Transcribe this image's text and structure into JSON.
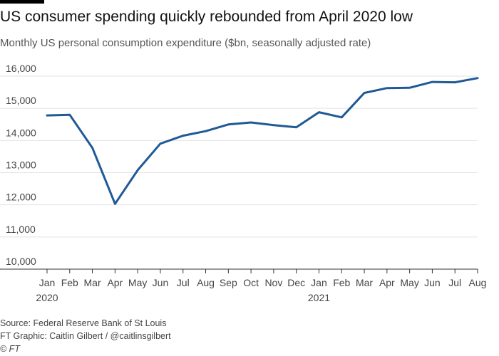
{
  "header": {
    "title": "US consumer spending quickly rebounded from April 2020 low",
    "subtitle": "Monthly US personal consumption expenditure ($bn, seasonally adjusted rate)"
  },
  "footer": {
    "source": "Source: Federal Reserve Bank of St Louis",
    "credit": "FT Graphic: Caitlin Gilbert / @caitlinsgilbert",
    "copyright": "© FT"
  },
  "colors": {
    "line": "#1f5a96",
    "grid": "#e2e2e2",
    "axis": "#333333"
  },
  "chart_data": {
    "type": "line",
    "title": "US consumer spending quickly rebounded from April 2020 low",
    "subtitle": "Monthly US personal consumption expenditure ($bn, seasonally adjusted rate)",
    "xlabel": "",
    "ylabel": "",
    "ylim": [
      10000,
      16000
    ],
    "yticks": [
      10000,
      11000,
      12000,
      13000,
      14000,
      15000,
      16000
    ],
    "ytick_labels": [
      "10,000",
      "11,000",
      "12,000",
      "13,000",
      "14,000",
      "15,000",
      "16,000"
    ],
    "categories": [
      "Jan",
      "Feb",
      "Mar",
      "Apr",
      "May",
      "Jun",
      "Jul",
      "Aug",
      "Sep",
      "Oct",
      "Nov",
      "Dec",
      "Jan",
      "Feb",
      "Mar",
      "Apr",
      "May",
      "Jun",
      "Jul",
      "Aug"
    ],
    "year_labels": [
      {
        "index": 0,
        "label": "2020"
      },
      {
        "index": 12,
        "label": "2021"
      }
    ],
    "grid": true,
    "legend": "none",
    "series": [
      {
        "values": [
          14780,
          14800,
          13770,
          12030,
          13080,
          13900,
          14150,
          14290,
          14500,
          14560,
          14480,
          14410,
          14880,
          14720,
          15480,
          15630,
          15640,
          15820,
          15810,
          15940
        ]
      }
    ]
  }
}
